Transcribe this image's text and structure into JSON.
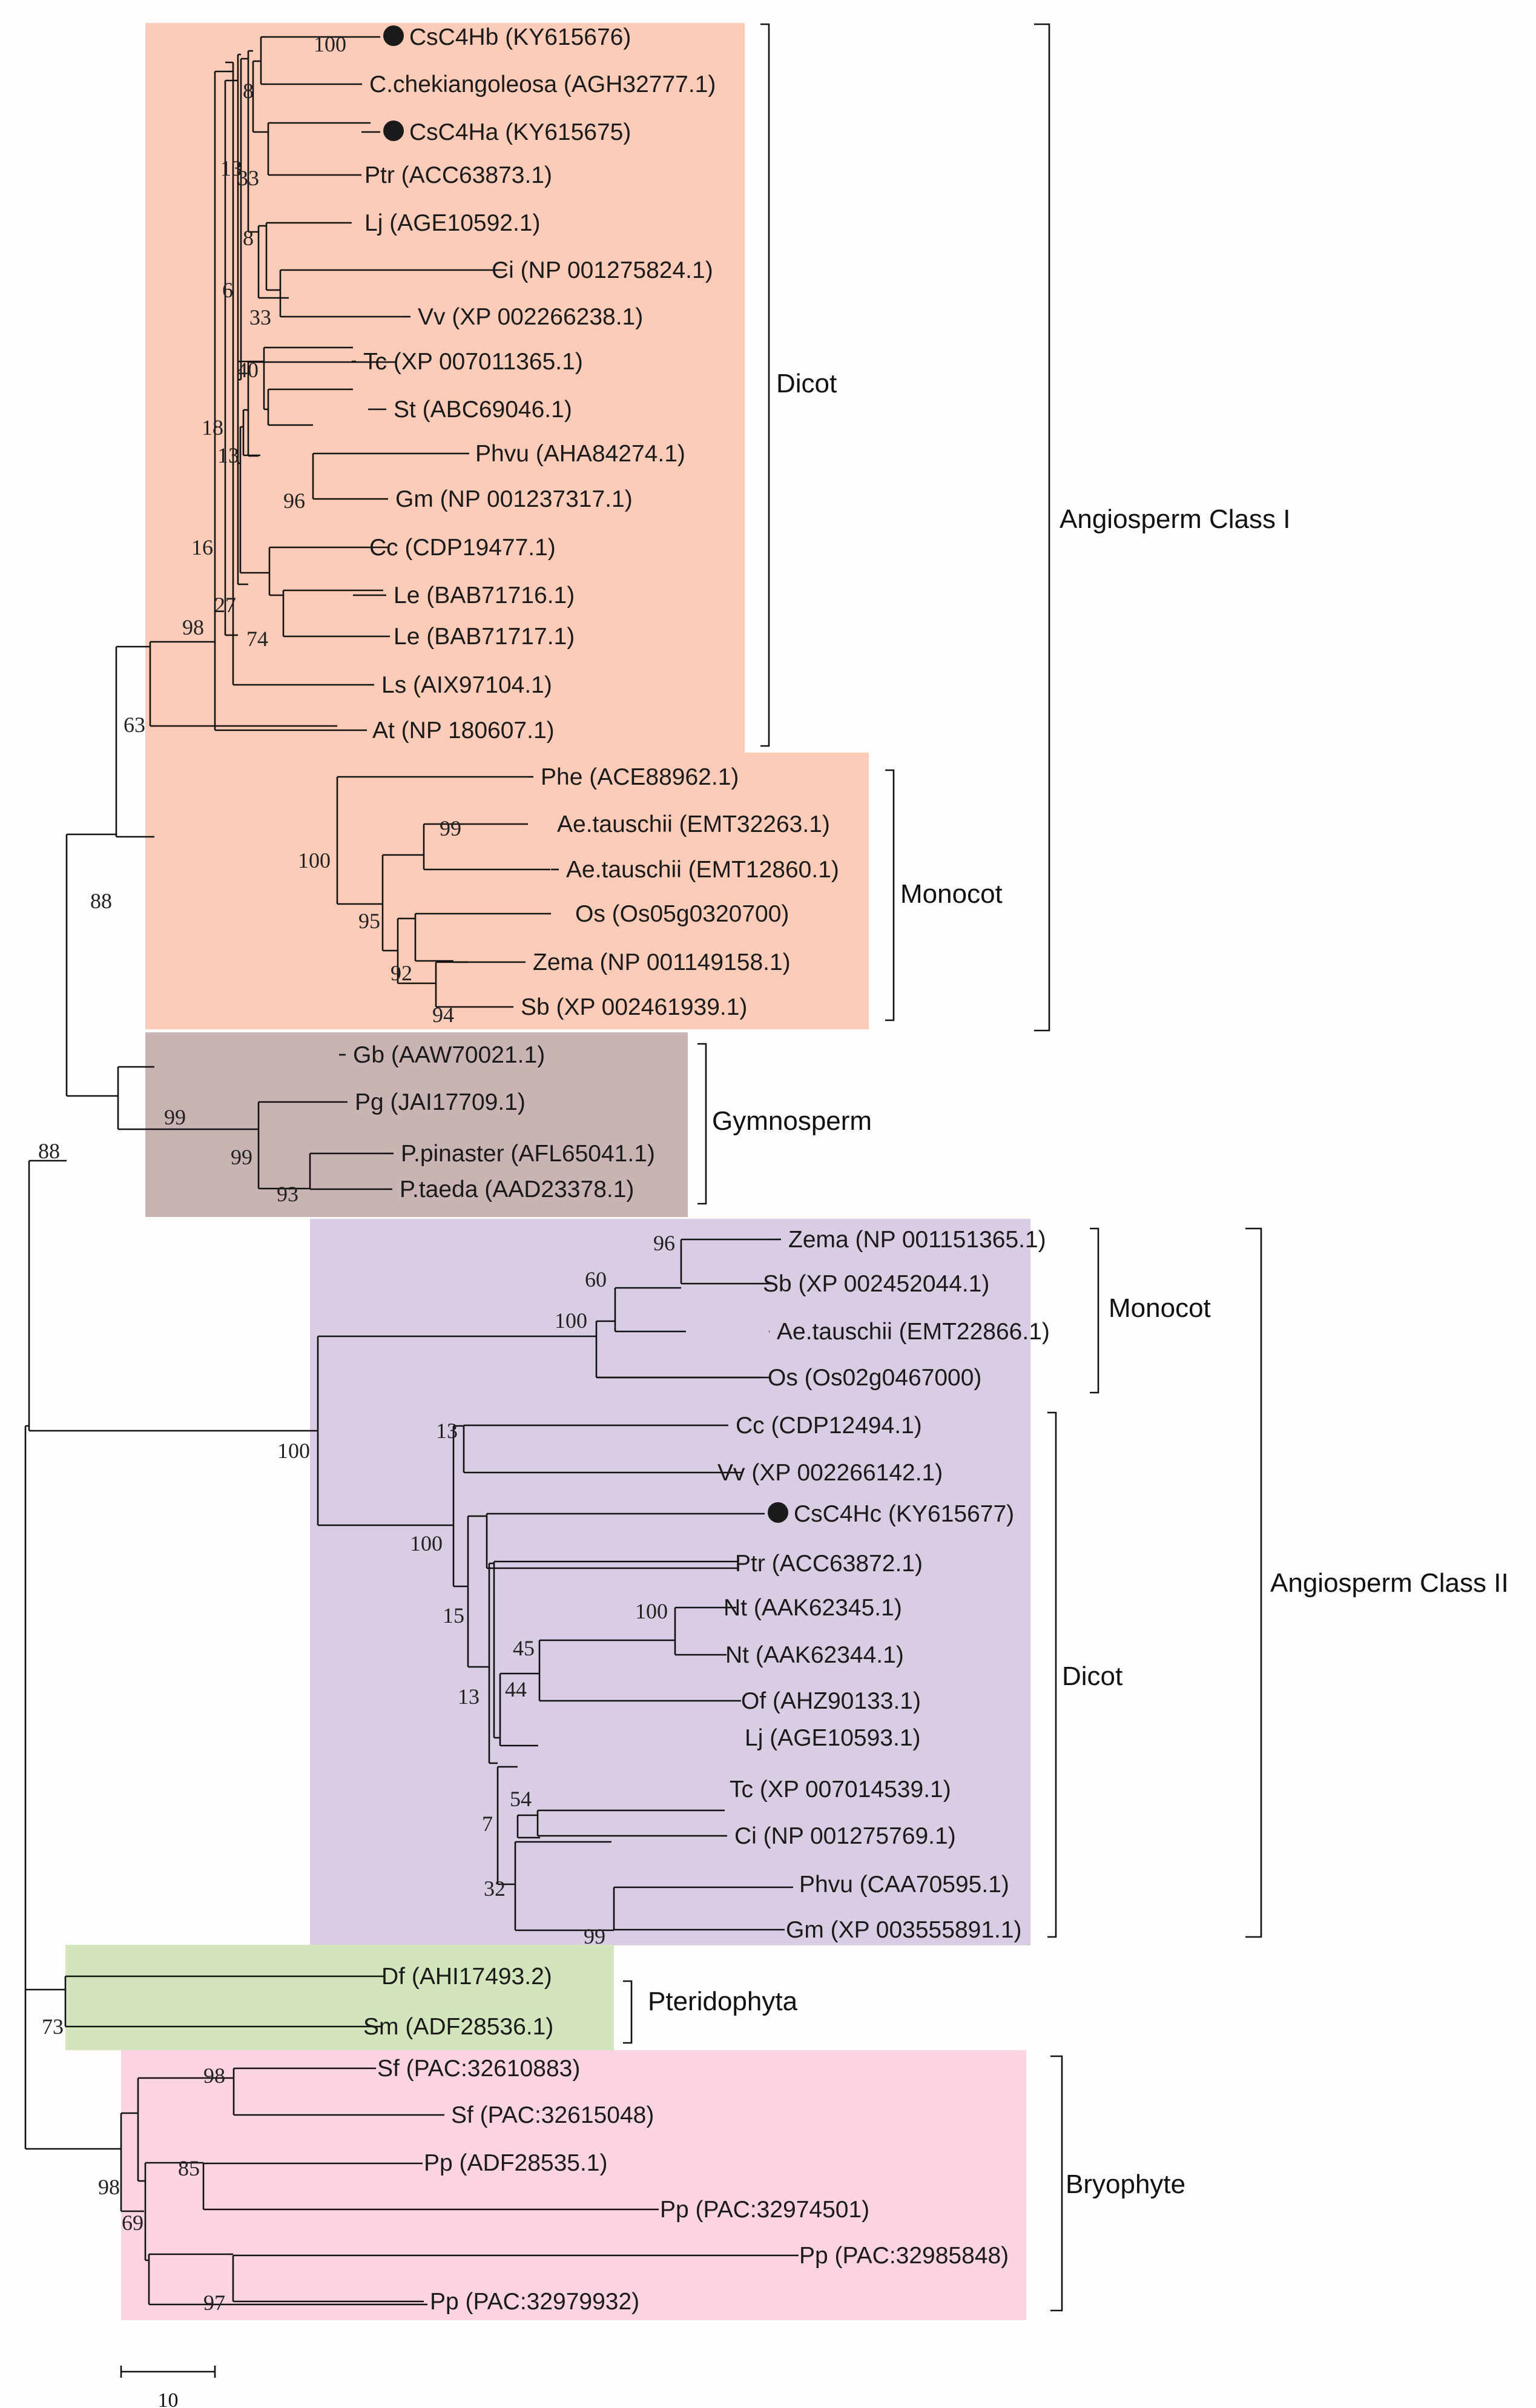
{
  "colors": {
    "class1": "#fdccb8",
    "gymno": "#c9b3b3",
    "class2": "#d8cde3",
    "pterido": "#d2e5bd",
    "bryo": "#fcd3e2",
    "marker": "#1a1a1a"
  },
  "group_labels": [
    {
      "id": "dicot1",
      "text": "Dicot"
    },
    {
      "id": "monocot1",
      "text": "Monocot"
    },
    {
      "id": "class1",
      "text": "Angiosperm Class I"
    },
    {
      "id": "gymno",
      "text": "Gymnosperm"
    },
    {
      "id": "monocot2",
      "text": "Monocot"
    },
    {
      "id": "dicot2",
      "text": "Dicot"
    },
    {
      "id": "class2",
      "text": "Angiosperm Class II"
    },
    {
      "id": "pterido",
      "text": "Pteridophyta"
    },
    {
      "id": "bryo",
      "text": "Bryophyte"
    }
  ],
  "leaves": [
    {
      "label": "CsC4Hb (KY615676)",
      "marker": true
    },
    {
      "label": "C.chekiangoleosa (AGH32777.1)"
    },
    {
      "label": "CsC4Ha (KY615675)",
      "marker": true
    },
    {
      "label": "Ptr (ACC63873.1)"
    },
    {
      "label": "Lj (AGE10592.1)"
    },
    {
      "label": "Ci (NP 001275824.1)"
    },
    {
      "label": "Vv (XP 002266238.1)"
    },
    {
      "label": "Tc (XP 007011365.1)"
    },
    {
      "label": "St (ABC69046.1)"
    },
    {
      "label": "Phvu (AHA84274.1)"
    },
    {
      "label": "Gm (NP 001237317.1)"
    },
    {
      "label": "Cc (CDP19477.1)"
    },
    {
      "label": "Le (BAB71716.1)"
    },
    {
      "label": "Le (BAB71717.1)"
    },
    {
      "label": "Ls (AIX97104.1)"
    },
    {
      "label": "At (NP 180607.1)"
    },
    {
      "label": "Phe (ACE88962.1)"
    },
    {
      "label": "Ae.tauschii (EMT32263.1)"
    },
    {
      "label": "Ae.tauschii (EMT12860.1)"
    },
    {
      "label": "Os (Os05g0320700)"
    },
    {
      "label": "Zema (NP 001149158.1)"
    },
    {
      "label": "Sb (XP 002461939.1)"
    },
    {
      "label": "Gb (AAW70021.1)"
    },
    {
      "label": "Pg (JAI17709.1)"
    },
    {
      "label": "P.pinaster (AFL65041.1)"
    },
    {
      "label": "P.taeda (AAD23378.1)"
    },
    {
      "label": "Zema (NP 001151365.1)"
    },
    {
      "label": "Sb (XP 002452044.1)"
    },
    {
      "label": "Ae.tauschii (EMT22866.1)"
    },
    {
      "label": "Os (Os02g0467000)"
    },
    {
      "label": "Cc (CDP12494.1)"
    },
    {
      "label": "Vv (XP 002266142.1)"
    },
    {
      "label": "CsC4Hc (KY615677)",
      "marker": true
    },
    {
      "label": "Ptr (ACC63872.1)"
    },
    {
      "label": "Nt (AAK62345.1)"
    },
    {
      "label": "Nt (AAK62344.1)"
    },
    {
      "label": "Of (AHZ90133.1)"
    },
    {
      "label": "Lj (AGE10593.1)"
    },
    {
      "label": "Tc (XP 007014539.1)"
    },
    {
      "label": "Ci (NP 001275769.1)"
    },
    {
      "label": "Phvu (CAA70595.1)"
    },
    {
      "label": "Gm (XP 003555891.1)"
    },
    {
      "label": "Df (AHI17493.2)"
    },
    {
      "label": "Sm (ADF28536.1)"
    },
    {
      "label": "Sf (PAC:32610883)"
    },
    {
      "label": "Sf (PAC:32615048)"
    },
    {
      "label": "Pp (ADF28535.1)"
    },
    {
      "label": "Pp (PAC:32974501)"
    },
    {
      "label": "Pp (PAC:32985848)"
    },
    {
      "label": "Pp (PAC:32979932)"
    }
  ],
  "bootstraps": [
    {
      "id": "b_hb_chek",
      "value": "100"
    },
    {
      "id": "b_hb_ha",
      "value": "8"
    },
    {
      "id": "b_13",
      "value": "13"
    },
    {
      "id": "b_33",
      "value": "33"
    },
    {
      "id": "b_8b",
      "value": "8"
    },
    {
      "id": "b_ci_vv",
      "value": "33"
    },
    {
      "id": "b_6",
      "value": "6"
    },
    {
      "id": "b_40",
      "value": "40"
    },
    {
      "id": "b_18",
      "value": "18"
    },
    {
      "id": "b_13b",
      "value": "13"
    },
    {
      "id": "b_phvu_gm",
      "value": "96"
    },
    {
      "id": "b_16",
      "value": "16"
    },
    {
      "id": "b_27",
      "value": "27"
    },
    {
      "id": "b_le",
      "value": "74"
    },
    {
      "id": "b_98a",
      "value": "98"
    },
    {
      "id": "b_63",
      "value": "63"
    },
    {
      "id": "b_ae",
      "value": "99"
    },
    {
      "id": "b_mono100",
      "value": "100"
    },
    {
      "id": "b_95",
      "value": "95"
    },
    {
      "id": "b_92",
      "value": "92"
    },
    {
      "id": "b_94",
      "value": "94"
    },
    {
      "id": "b_88a",
      "value": "88"
    },
    {
      "id": "b_gymno99",
      "value": "99"
    },
    {
      "id": "b_pg99",
      "value": "99"
    },
    {
      "id": "b_pine93",
      "value": "93"
    },
    {
      "id": "b_88b",
      "value": "88"
    },
    {
      "id": "b_96",
      "value": "96"
    },
    {
      "id": "b_60",
      "value": "60"
    },
    {
      "id": "b_m2_100",
      "value": "100"
    },
    {
      "id": "b_c2_100",
      "value": "100"
    },
    {
      "id": "b_cc_vv13",
      "value": "13"
    },
    {
      "id": "b_d2_100",
      "value": "100"
    },
    {
      "id": "b_15",
      "value": "15"
    },
    {
      "id": "b_nt100",
      "value": "100"
    },
    {
      "id": "b_45",
      "value": "45"
    },
    {
      "id": "b_44",
      "value": "44"
    },
    {
      "id": "b_13c",
      "value": "13"
    },
    {
      "id": "b_54",
      "value": "54"
    },
    {
      "id": "b_7",
      "value": "7"
    },
    {
      "id": "b_32",
      "value": "32"
    },
    {
      "id": "b_99gm",
      "value": "99"
    },
    {
      "id": "b_73",
      "value": "73"
    },
    {
      "id": "b_sf98",
      "value": "98"
    },
    {
      "id": "b_85",
      "value": "85"
    },
    {
      "id": "b_98b",
      "value": "98"
    },
    {
      "id": "b_69",
      "value": "69"
    },
    {
      "id": "b_97",
      "value": "97"
    }
  ],
  "scale_bar": {
    "value": 10,
    "label": "10"
  }
}
